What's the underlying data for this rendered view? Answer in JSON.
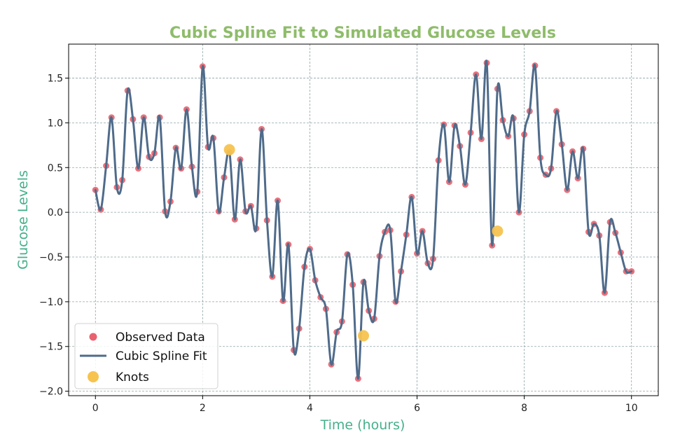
{
  "chart_data": {
    "type": "scatter",
    "title": "Cubic Spline Fit to Simulated Glucose Levels",
    "xlabel": "Time (hours)",
    "ylabel": "Glucose Levels",
    "xlim": [
      -0.5,
      10.5
    ],
    "ylim": [
      -2.05,
      1.88
    ],
    "xticks": [
      0,
      2,
      4,
      6,
      8,
      10
    ],
    "yticks": [
      -2.0,
      -1.5,
      -1.0,
      -0.5,
      0.0,
      0.5,
      1.0,
      1.5
    ],
    "xtick_labels": [
      "0",
      "2",
      "4",
      "6",
      "8",
      "10"
    ],
    "ytick_labels": [
      "−2.0",
      "−1.5",
      "−1.0",
      "−0.5",
      "0.0",
      "0.5",
      "1.0",
      "1.5"
    ],
    "grid": true,
    "legend_position": "lower-left",
    "legend": [
      "Observed Data",
      "Cubic Spline Fit",
      "Knots"
    ],
    "colors": {
      "title": "#8fbc6b",
      "axis_label": "#45b08a",
      "observed": "#e8626e",
      "spline": "#4f6b8a",
      "knots": "#f7c34f",
      "grid": "#8fa3a8"
    },
    "series": [
      {
        "name": "Observed Data",
        "kind": "scatter",
        "x": [
          0.0,
          0.1,
          0.2,
          0.3,
          0.4,
          0.5,
          0.6,
          0.7,
          0.8,
          0.9,
          1.0,
          1.1,
          1.2,
          1.3,
          1.4,
          1.5,
          1.6,
          1.7,
          1.8,
          1.9,
          2.0,
          2.1,
          2.2,
          2.3,
          2.4,
          2.5,
          2.6,
          2.7,
          2.8,
          2.9,
          3.0,
          3.1,
          3.2,
          3.3,
          3.4,
          3.5,
          3.6,
          3.7,
          3.8,
          3.9,
          4.0,
          4.1,
          4.2,
          4.3,
          4.4,
          4.5,
          4.6,
          4.7,
          4.8,
          4.9,
          5.0,
          5.1,
          5.2,
          5.3,
          5.4,
          5.5,
          5.6,
          5.7,
          5.8,
          5.9,
          6.0,
          6.1,
          6.2,
          6.3,
          6.4,
          6.5,
          6.6,
          6.7,
          6.8,
          6.9,
          7.0,
          7.1,
          7.2,
          7.3,
          7.4,
          7.5,
          7.6,
          7.7,
          7.8,
          7.9,
          8.0,
          8.1,
          8.2,
          8.3,
          8.4,
          8.5,
          8.6,
          8.7,
          8.8,
          8.9,
          9.0,
          9.1,
          9.2,
          9.3,
          9.4,
          9.5,
          9.6,
          9.7,
          9.8,
          9.9,
          10.0
        ],
        "y": [
          0.25,
          0.03,
          0.52,
          1.06,
          0.28,
          0.36,
          1.36,
          1.04,
          0.49,
          1.06,
          0.62,
          0.66,
          1.06,
          0.01,
          0.12,
          0.72,
          0.49,
          1.15,
          0.51,
          0.23,
          1.63,
          0.73,
          0.83,
          0.01,
          0.39,
          0.67,
          -0.08,
          0.59,
          0.01,
          0.07,
          -0.18,
          0.93,
          -0.09,
          -0.72,
          0.13,
          -0.99,
          -0.36,
          -1.54,
          -1.3,
          -0.61,
          -0.41,
          -0.76,
          -0.95,
          -1.08,
          -1.7,
          -1.34,
          -1.22,
          -0.47,
          -0.81,
          -1.86,
          -0.78,
          -1.1,
          -1.19,
          -0.49,
          -0.22,
          -0.2,
          -1.0,
          -0.66,
          -0.25,
          0.17,
          -0.46,
          -0.21,
          -0.57,
          -0.52,
          0.58,
          0.98,
          0.34,
          0.97,
          0.74,
          0.31,
          0.89,
          1.54,
          0.82,
          1.67,
          -0.37,
          1.38,
          1.03,
          0.85,
          1.05,
          0.0,
          0.87,
          1.13,
          1.64,
          0.61,
          0.42,
          0.49,
          1.13,
          0.76,
          0.25,
          0.68,
          0.38,
          0.71,
          -0.22,
          -0.13,
          -0.26,
          -0.9,
          -0.11,
          -0.23,
          -0.45,
          -0.66,
          -0.66
        ]
      },
      {
        "name": "Cubic Spline Fit",
        "kind": "line",
        "interpolation": "catmull-rom through observed data"
      },
      {
        "name": "Knots",
        "kind": "scatter",
        "x": [
          2.5,
          5.0,
          7.5
        ],
        "y": [
          0.7,
          -1.38,
          -0.21
        ]
      }
    ]
  }
}
